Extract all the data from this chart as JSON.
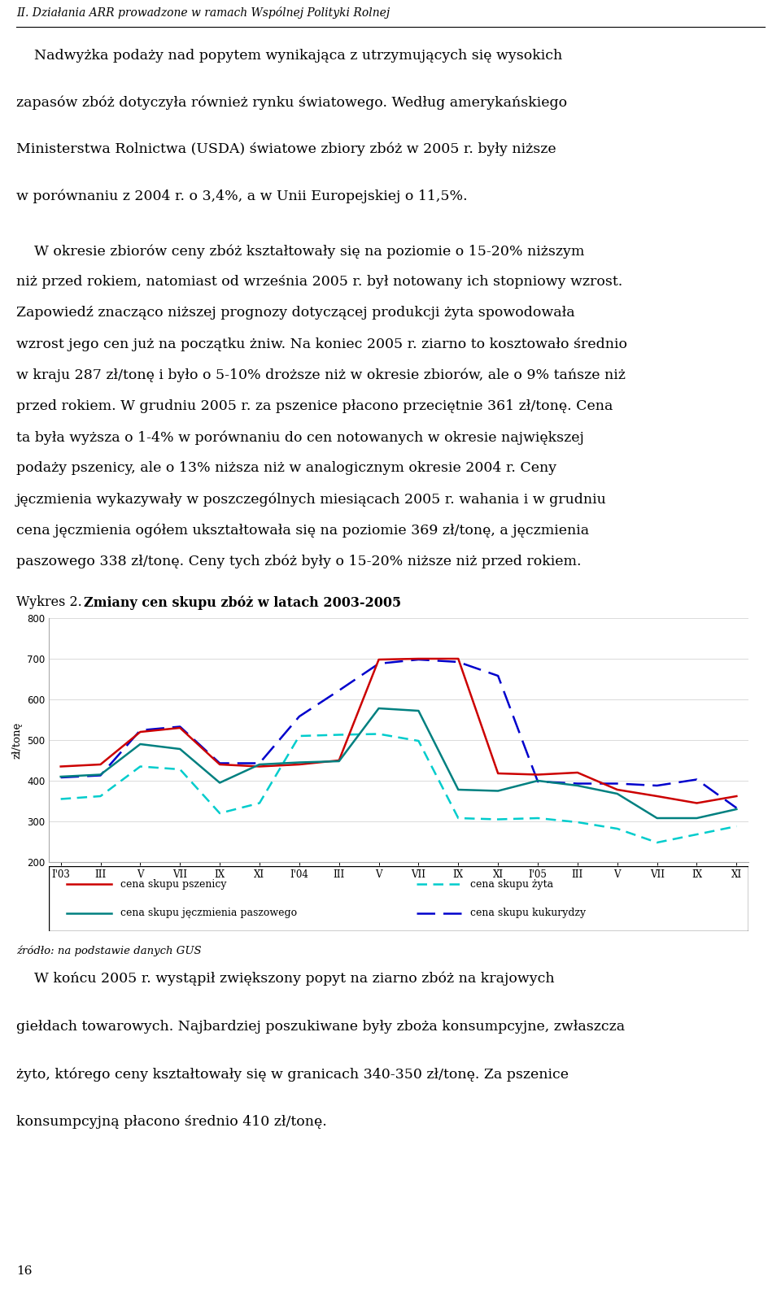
{
  "header": "II. Działania ARR prowadzone w ramach Wspólnej Polityki Rolnej",
  "chart_title_prefix": "Wykres 2. ",
  "chart_title_bold": "Zmiany cen skupu zbóż w latach 2003-2005",
  "ylabel": "zł/tonę",
  "ylim": [
    200,
    800
  ],
  "yticks": [
    200,
    300,
    400,
    500,
    600,
    700,
    800
  ],
  "xlabels": [
    "I'03",
    "III",
    "V",
    "VII",
    "IX",
    "XI",
    "I'04",
    "III",
    "V",
    "VII",
    "IX",
    "XI",
    "I'05",
    "III",
    "V",
    "VII",
    "IX",
    "XI"
  ],
  "pszenica": [
    435,
    440,
    520,
    530,
    440,
    435,
    440,
    450,
    698,
    700,
    700,
    418,
    415,
    420,
    378,
    362,
    345,
    362
  ],
  "jeczmien": [
    410,
    415,
    490,
    478,
    395,
    440,
    445,
    448,
    578,
    572,
    378,
    375,
    400,
    388,
    368,
    308,
    308,
    330
  ],
  "zyto": [
    355,
    362,
    435,
    428,
    320,
    345,
    510,
    513,
    515,
    498,
    308,
    305,
    308,
    298,
    282,
    248,
    268,
    288
  ],
  "kukurydza": [
    408,
    413,
    524,
    533,
    443,
    443,
    558,
    622,
    688,
    698,
    692,
    658,
    398,
    393,
    393,
    388,
    403,
    333
  ],
  "pszenica_color": "#cc0000",
  "jeczmien_color": "#008080",
  "zyto_color": "#00cccc",
  "kukurydza_color": "#0000cc",
  "source_text": "źródło: na podstawie danych GUS",
  "page_number": "16",
  "legend_items": [
    {
      "label": "cena skupu pszenicy",
      "color": "#cc0000",
      "ls": "-"
    },
    {
      "label": "cena skupu żyta",
      "color": "#00cccc",
      "ls": "--"
    },
    {
      "label": "cena skupu jęczmienia paszowego",
      "color": "#008080",
      "ls": "-"
    },
    {
      "label": "cena skupu kukurydzy",
      "color": "#0000cc",
      "ls": "--"
    }
  ]
}
